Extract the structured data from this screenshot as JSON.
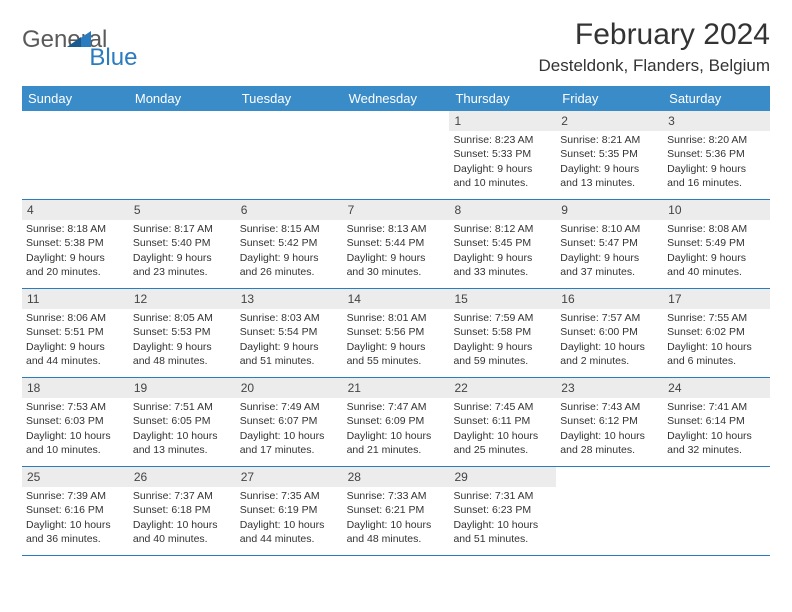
{
  "logo": {
    "general": "General",
    "blue": "Blue"
  },
  "title": "February 2024",
  "location": "Desteldonk, Flanders, Belgium",
  "colors": {
    "header_bg": "#3a8cc9",
    "header_text": "#ffffff",
    "daynum_bg": "#ececec",
    "border": "#2b7bbf",
    "text": "#333333",
    "logo_gray": "#5a5a5a",
    "logo_blue": "#2b7bbf"
  },
  "fonts": {
    "month_title_size": 30,
    "location_size": 17,
    "dow_size": 13,
    "daynum_size": 12,
    "body_size": 10.5
  },
  "days_of_week": [
    "Sunday",
    "Monday",
    "Tuesday",
    "Wednesday",
    "Thursday",
    "Friday",
    "Saturday"
  ],
  "weeks": [
    [
      null,
      null,
      null,
      null,
      {
        "n": "1",
        "sr": "Sunrise: 8:23 AM",
        "ss": "Sunset: 5:33 PM",
        "d1": "Daylight: 9 hours",
        "d2": "and 10 minutes."
      },
      {
        "n": "2",
        "sr": "Sunrise: 8:21 AM",
        "ss": "Sunset: 5:35 PM",
        "d1": "Daylight: 9 hours",
        "d2": "and 13 minutes."
      },
      {
        "n": "3",
        "sr": "Sunrise: 8:20 AM",
        "ss": "Sunset: 5:36 PM",
        "d1": "Daylight: 9 hours",
        "d2": "and 16 minutes."
      }
    ],
    [
      {
        "n": "4",
        "sr": "Sunrise: 8:18 AM",
        "ss": "Sunset: 5:38 PM",
        "d1": "Daylight: 9 hours",
        "d2": "and 20 minutes."
      },
      {
        "n": "5",
        "sr": "Sunrise: 8:17 AM",
        "ss": "Sunset: 5:40 PM",
        "d1": "Daylight: 9 hours",
        "d2": "and 23 minutes."
      },
      {
        "n": "6",
        "sr": "Sunrise: 8:15 AM",
        "ss": "Sunset: 5:42 PM",
        "d1": "Daylight: 9 hours",
        "d2": "and 26 minutes."
      },
      {
        "n": "7",
        "sr": "Sunrise: 8:13 AM",
        "ss": "Sunset: 5:44 PM",
        "d1": "Daylight: 9 hours",
        "d2": "and 30 minutes."
      },
      {
        "n": "8",
        "sr": "Sunrise: 8:12 AM",
        "ss": "Sunset: 5:45 PM",
        "d1": "Daylight: 9 hours",
        "d2": "and 33 minutes."
      },
      {
        "n": "9",
        "sr": "Sunrise: 8:10 AM",
        "ss": "Sunset: 5:47 PM",
        "d1": "Daylight: 9 hours",
        "d2": "and 37 minutes."
      },
      {
        "n": "10",
        "sr": "Sunrise: 8:08 AM",
        "ss": "Sunset: 5:49 PM",
        "d1": "Daylight: 9 hours",
        "d2": "and 40 minutes."
      }
    ],
    [
      {
        "n": "11",
        "sr": "Sunrise: 8:06 AM",
        "ss": "Sunset: 5:51 PM",
        "d1": "Daylight: 9 hours",
        "d2": "and 44 minutes."
      },
      {
        "n": "12",
        "sr": "Sunrise: 8:05 AM",
        "ss": "Sunset: 5:53 PM",
        "d1": "Daylight: 9 hours",
        "d2": "and 48 minutes."
      },
      {
        "n": "13",
        "sr": "Sunrise: 8:03 AM",
        "ss": "Sunset: 5:54 PM",
        "d1": "Daylight: 9 hours",
        "d2": "and 51 minutes."
      },
      {
        "n": "14",
        "sr": "Sunrise: 8:01 AM",
        "ss": "Sunset: 5:56 PM",
        "d1": "Daylight: 9 hours",
        "d2": "and 55 minutes."
      },
      {
        "n": "15",
        "sr": "Sunrise: 7:59 AM",
        "ss": "Sunset: 5:58 PM",
        "d1": "Daylight: 9 hours",
        "d2": "and 59 minutes."
      },
      {
        "n": "16",
        "sr": "Sunrise: 7:57 AM",
        "ss": "Sunset: 6:00 PM",
        "d1": "Daylight: 10 hours",
        "d2": "and 2 minutes."
      },
      {
        "n": "17",
        "sr": "Sunrise: 7:55 AM",
        "ss": "Sunset: 6:02 PM",
        "d1": "Daylight: 10 hours",
        "d2": "and 6 minutes."
      }
    ],
    [
      {
        "n": "18",
        "sr": "Sunrise: 7:53 AM",
        "ss": "Sunset: 6:03 PM",
        "d1": "Daylight: 10 hours",
        "d2": "and 10 minutes."
      },
      {
        "n": "19",
        "sr": "Sunrise: 7:51 AM",
        "ss": "Sunset: 6:05 PM",
        "d1": "Daylight: 10 hours",
        "d2": "and 13 minutes."
      },
      {
        "n": "20",
        "sr": "Sunrise: 7:49 AM",
        "ss": "Sunset: 6:07 PM",
        "d1": "Daylight: 10 hours",
        "d2": "and 17 minutes."
      },
      {
        "n": "21",
        "sr": "Sunrise: 7:47 AM",
        "ss": "Sunset: 6:09 PM",
        "d1": "Daylight: 10 hours",
        "d2": "and 21 minutes."
      },
      {
        "n": "22",
        "sr": "Sunrise: 7:45 AM",
        "ss": "Sunset: 6:11 PM",
        "d1": "Daylight: 10 hours",
        "d2": "and 25 minutes."
      },
      {
        "n": "23",
        "sr": "Sunrise: 7:43 AM",
        "ss": "Sunset: 6:12 PM",
        "d1": "Daylight: 10 hours",
        "d2": "and 28 minutes."
      },
      {
        "n": "24",
        "sr": "Sunrise: 7:41 AM",
        "ss": "Sunset: 6:14 PM",
        "d1": "Daylight: 10 hours",
        "d2": "and 32 minutes."
      }
    ],
    [
      {
        "n": "25",
        "sr": "Sunrise: 7:39 AM",
        "ss": "Sunset: 6:16 PM",
        "d1": "Daylight: 10 hours",
        "d2": "and 36 minutes."
      },
      {
        "n": "26",
        "sr": "Sunrise: 7:37 AM",
        "ss": "Sunset: 6:18 PM",
        "d1": "Daylight: 10 hours",
        "d2": "and 40 minutes."
      },
      {
        "n": "27",
        "sr": "Sunrise: 7:35 AM",
        "ss": "Sunset: 6:19 PM",
        "d1": "Daylight: 10 hours",
        "d2": "and 44 minutes."
      },
      {
        "n": "28",
        "sr": "Sunrise: 7:33 AM",
        "ss": "Sunset: 6:21 PM",
        "d1": "Daylight: 10 hours",
        "d2": "and 48 minutes."
      },
      {
        "n": "29",
        "sr": "Sunrise: 7:31 AM",
        "ss": "Sunset: 6:23 PM",
        "d1": "Daylight: 10 hours",
        "d2": "and 51 minutes."
      },
      null,
      null
    ]
  ]
}
